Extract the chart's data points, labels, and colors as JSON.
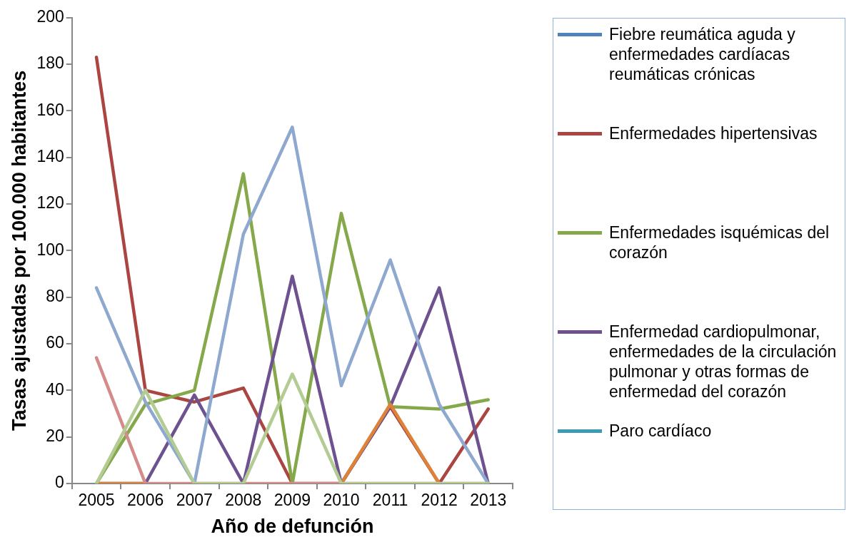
{
  "chart_data": {
    "type": "line",
    "xlabel": "Año de defunción",
    "ylabel": "Tasas ajustadas por 100.000 habitantes",
    "categories": [
      "2005",
      "2006",
      "2007",
      "2008",
      "2009",
      "2010",
      "2011",
      "2012",
      "2013"
    ],
    "ylim": [
      0,
      200
    ],
    "yticks": [
      0,
      20,
      40,
      60,
      80,
      100,
      120,
      140,
      160,
      180,
      200
    ],
    "grid": false,
    "legend": "right",
    "marker": "none",
    "series": [
      {
        "name": "Fiebre reumática aguda y enfermedades cardíacas reumáticas crónicas",
        "color": "#4f81bd",
        "values": [
          null,
          null,
          null,
          null,
          null,
          null,
          null,
          null,
          null
        ]
      },
      {
        "name": "Enfermedades hipertensivas",
        "color": "#ab4541",
        "values": [
          183,
          40,
          35,
          41,
          0,
          0,
          33,
          0,
          32
        ]
      },
      {
        "name": "Enfermedades isquémicas del corazón",
        "color": "#84a84a",
        "values": [
          0,
          34,
          40,
          133,
          0,
          116,
          33,
          32,
          36
        ]
      },
      {
        "name": "Enfermedad cardiopulmonar, enfermedades de la circulación pulmonar y otras formas de enfermedad del corazón",
        "color": "#6e5290",
        "values": [
          0,
          0,
          38,
          0,
          89,
          0,
          33,
          84,
          0
        ]
      },
      {
        "name": "Paro cardíaco",
        "color": "#3e9bb8",
        "values": [
          null,
          null,
          null,
          null,
          null,
          null,
          null,
          null,
          null
        ]
      },
      {
        "color": "#dd8238",
        "values": [
          0,
          0,
          null,
          null,
          null,
          0,
          34,
          0,
          null
        ]
      },
      {
        "color": "#8ea8cf",
        "values": [
          84,
          35,
          0,
          107,
          153,
          42,
          96,
          34,
          0
        ]
      },
      {
        "color": "#d48c8a",
        "values": [
          54,
          0,
          0,
          0,
          0,
          0,
          0,
          0,
          0
        ]
      },
      {
        "color": "#b3cc94",
        "values": [
          0,
          40,
          0,
          0,
          47,
          0,
          0,
          0,
          0
        ]
      }
    ]
  }
}
